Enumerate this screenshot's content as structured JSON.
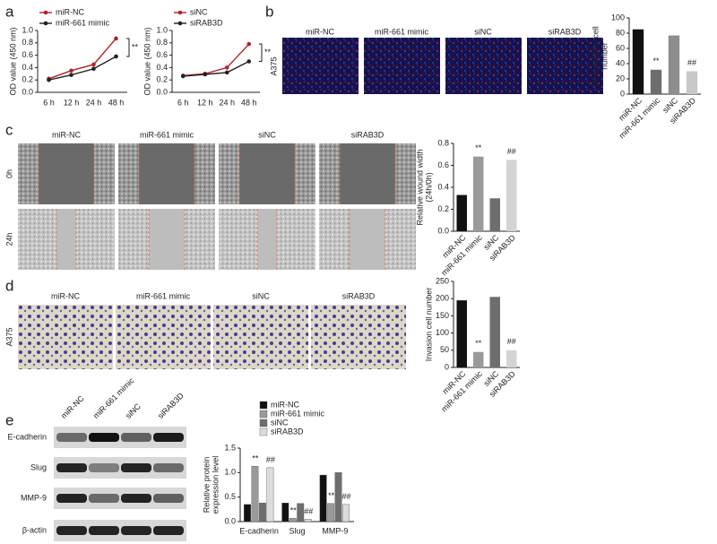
{
  "figure_labels": [
    "a",
    "b",
    "c",
    "d",
    "e"
  ],
  "panel_b": {
    "cell_line": "A375",
    "columns": [
      "miR-NC",
      "miR-661 mimic",
      "siNC",
      "siRAB3D"
    ]
  },
  "panel_c": {
    "columns": [
      "miR-NC",
      "miR-661 mimic",
      "siNC",
      "siRAB3D"
    ],
    "rows": [
      "0h",
      "24h"
    ]
  },
  "panel_d": {
    "cell_line": "A375",
    "columns": [
      "miR-NC",
      "miR-661 mimic",
      "siNC",
      "siRAB3D"
    ]
  },
  "panel_e": {
    "lanes": [
      "miR-NC",
      "miR-661 mimic",
      "siNC",
      "siRAB3D"
    ],
    "proteins": [
      "E-cadherin",
      "Slug",
      "MMP-9",
      "β-actin"
    ]
  },
  "chart_data": [
    {
      "type": "line",
      "ylabel": [
        "OD value (450 nm)"
      ],
      "categories": [
        "6 h",
        "12 h",
        "24 h",
        "48 h"
      ],
      "series": [
        {
          "name": "miR-NC",
          "color": "#b22222",
          "values": [
            0.22,
            0.35,
            0.45,
            0.87
          ]
        },
        {
          "name": "miR-661 mimic",
          "color": "#222222",
          "values": [
            0.2,
            0.28,
            0.38,
            0.58
          ]
        }
      ],
      "annotation": "**",
      "ylim": [
        0,
        1
      ],
      "yticks": [
        {
          "value": 0,
          "label": "0.0"
        },
        0.2,
        0.4,
        0.6,
        0.8,
        {
          "value": 1,
          "label": "1.0"
        }
      ]
    },
    {
      "type": "line",
      "ylabel": [
        "OD value (450 nm)"
      ],
      "categories": [
        "6 h",
        "12 h",
        "24 h",
        "48 h"
      ],
      "series": [
        {
          "name": "siNC",
          "color": "#b22222",
          "values": [
            0.27,
            0.3,
            0.4,
            0.78
          ]
        },
        {
          "name": "siRAB3D",
          "color": "#222222",
          "values": [
            0.26,
            0.29,
            0.32,
            0.5
          ]
        }
      ],
      "annotation": "**",
      "ylim": [
        0,
        1
      ],
      "yticks": [
        {
          "value": 0,
          "label": "0.0"
        },
        0.2,
        0.4,
        0.6,
        0.8,
        {
          "value": 1,
          "label": "1.0"
        }
      ]
    },
    {
      "type": "bar",
      "ylabel": [
        "EdU positive cell",
        "number"
      ],
      "categories": [
        "miR-NC",
        "miR-661 mimic",
        "siNC",
        "siRAB3D"
      ],
      "values": [
        85,
        32,
        77,
        30
      ],
      "colors": [
        "#111111",
        "#6e6e6e",
        "#8e8e8e",
        "#c8c8c8"
      ],
      "annotations": [
        null,
        "**",
        null,
        "##"
      ],
      "ylim": [
        0,
        100
      ],
      "yticks": [
        0,
        20,
        40,
        60,
        80,
        100
      ]
    },
    {
      "type": "bar",
      "ylabel": [
        "Relative wound width",
        "(24h/0h)"
      ],
      "categories": [
        "miR-NC",
        "miR-661 mimic",
        "siNC",
        "siRAB3D"
      ],
      "values": [
        0.33,
        0.68,
        0.3,
        0.65
      ],
      "colors": [
        "#111111",
        "#9a9a9a",
        "#6e6e6e",
        "#d4d4d4"
      ],
      "annotations": [
        null,
        "**",
        null,
        "##"
      ],
      "ylim": [
        0,
        0.8
      ],
      "yticks": [
        {
          "value": 0,
          "label": "0.0"
        },
        0.2,
        0.4,
        0.6,
        0.8
      ]
    },
    {
      "type": "bar",
      "ylabel": [
        "Invasion cell number"
      ],
      "categories": [
        "miR-NC",
        "miR-661 mimic",
        "siNC",
        "siRAB3D"
      ],
      "values": [
        195,
        45,
        205,
        50
      ],
      "colors": [
        "#111111",
        "#9a9a9a",
        "#6e6e6e",
        "#d4d4d4"
      ],
      "annotations": [
        null,
        "**",
        null,
        "##"
      ],
      "ylim": [
        0,
        250
      ],
      "yticks": [
        0,
        50,
        100,
        150,
        200,
        250
      ]
    },
    {
      "type": "bar",
      "ylabel": [
        "Relative protein",
        "expression level"
      ],
      "categories": [
        "E-cadherin",
        "Slug",
        "MMP-9"
      ],
      "series": [
        {
          "name": "miR-NC",
          "color": "#111111",
          "values": [
            0.35,
            0.38,
            0.95
          ]
        },
        {
          "name": "miR-661 mimic",
          "color": "#9a9a9a",
          "values": [
            1.13,
            0.07,
            0.37
          ],
          "annotations": [
            "**",
            "**",
            "**"
          ]
        },
        {
          "name": "siNC",
          "color": "#6e6e6e",
          "values": [
            0.38,
            0.37,
            1.0
          ]
        },
        {
          "name": "siRAB3D",
          "color": "#dcdcdc",
          "values": [
            1.1,
            0.05,
            0.35
          ],
          "annotations": [
            "##",
            "##",
            "##"
          ]
        }
      ],
      "ylim": [
        0,
        1.5
      ],
      "yticks": [
        {
          "value": 0,
          "label": "0.0"
        },
        0.5,
        {
          "value": 1,
          "label": "1.0"
        },
        1.5
      ]
    }
  ]
}
